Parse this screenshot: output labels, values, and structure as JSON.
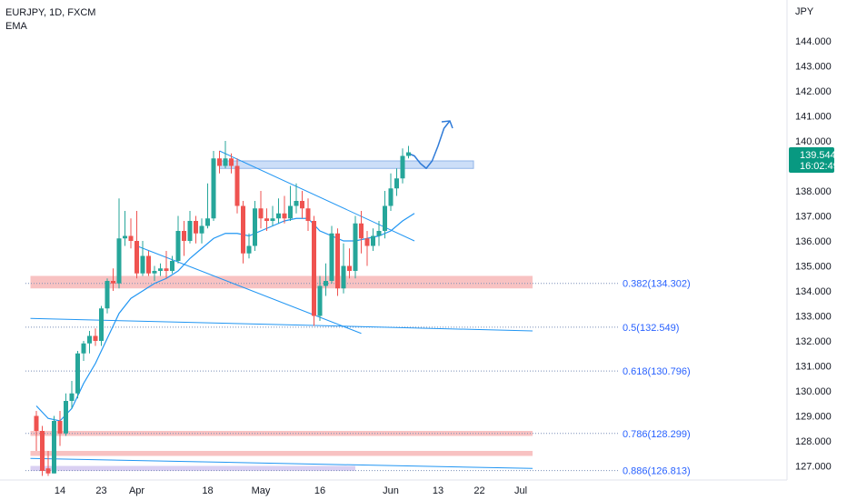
{
  "legend": {
    "symbol": "EURJPY, 1D, FXCM",
    "indicator": "EMA"
  },
  "currency": "JPY",
  "price_badge": {
    "price": "139.544",
    "countdown": "16:02:49",
    "color": "#089981"
  },
  "colors": {
    "up": "#26a69a",
    "down": "#ef5350",
    "ema": "#2196f3",
    "trend": "#2196f3",
    "zone_red": "#f7b7b7",
    "zone_blue": "#bbd3f5",
    "zone_purple": "#d4c8f0",
    "fib_text": "#2962ff"
  },
  "chart_data": {
    "type": "candlestick",
    "title": "EURJPY, 1D, FXCM",
    "ylabel": "JPY",
    "ylim": [
      126.5,
      145.7
    ],
    "y_ticks": [
      "144.000",
      "143.000",
      "142.000",
      "141.000",
      "140.000",
      "139.000",
      "138.000",
      "137.000",
      "136.000",
      "135.000",
      "134.000",
      "133.000",
      "132.000",
      "131.000",
      "130.000",
      "129.000",
      "128.000",
      "127.000"
    ],
    "x_ticks": [
      {
        "label": "14",
        "day": 0
      },
      {
        "label": "23",
        "day": 7
      },
      {
        "label": "Apr",
        "day": 13
      },
      {
        "label": "18",
        "day": 25
      },
      {
        "label": "May",
        "day": 34
      },
      {
        "label": "16",
        "day": 44
      },
      {
        "label": "Jun",
        "day": 56
      },
      {
        "label": "13",
        "day": 64
      },
      {
        "label": "22",
        "day": 71
      },
      {
        "label": "Jul",
        "day": 78
      }
    ],
    "candles": [
      [
        -4,
        129.0,
        128.4,
        129.2,
        127.6
      ],
      [
        -3,
        128.4,
        126.8,
        128.6,
        126.6
      ],
      [
        -2,
        126.9,
        126.7,
        127.6,
        126.6
      ],
      [
        -1,
        126.7,
        128.8,
        129.0,
        126.7
      ],
      [
        0,
        128.8,
        128.3,
        129.2,
        127.8
      ],
      [
        1,
        128.3,
        129.6,
        129.9,
        128.2
      ],
      [
        2,
        129.6,
        129.9,
        130.4,
        129.3
      ],
      [
        3,
        129.9,
        131.5,
        131.6,
        129.7
      ],
      [
        4,
        131.5,
        131.9,
        132.0,
        131.2
      ],
      [
        5,
        131.9,
        132.2,
        132.4,
        131.5
      ],
      [
        6,
        132.2,
        132.0,
        132.5,
        131.8
      ],
      [
        7,
        132.0,
        133.3,
        133.4,
        131.8
      ],
      [
        8,
        133.3,
        134.4,
        134.5,
        133.1
      ],
      [
        9,
        134.4,
        134.3,
        134.9,
        134.0
      ],
      [
        10,
        134.3,
        136.1,
        137.7,
        134.1
      ],
      [
        11,
        136.1,
        136.2,
        137.2,
        135.8
      ],
      [
        12,
        136.2,
        136.0,
        136.9,
        135.7
      ],
      [
        13,
        136.0,
        134.7,
        137.2,
        134.5
      ],
      [
        14,
        134.7,
        135.4,
        136.0,
        134.6
      ],
      [
        15,
        135.4,
        134.7,
        135.6,
        134.6
      ],
      [
        16,
        134.7,
        134.8,
        135.0,
        134.4
      ],
      [
        17,
        134.8,
        134.9,
        135.1,
        134.6
      ],
      [
        18,
        134.9,
        134.8,
        135.6,
        134.5
      ],
      [
        19,
        134.8,
        135.2,
        135.4,
        134.7
      ],
      [
        20,
        135.2,
        136.4,
        137.0,
        135.1
      ],
      [
        21,
        136.4,
        136.0,
        136.8,
        135.4
      ],
      [
        22,
        136.0,
        136.8,
        137.2,
        135.9
      ],
      [
        23,
        136.8,
        136.3,
        137.0,
        135.9
      ],
      [
        24,
        136.3,
        136.6,
        136.9,
        135.9
      ],
      [
        25,
        136.6,
        136.9,
        138.3,
        136.5
      ],
      [
        26,
        136.9,
        139.3,
        139.6,
        136.8
      ],
      [
        27,
        139.3,
        139.0,
        139.6,
        138.7
      ],
      [
        28,
        139.0,
        139.3,
        140.0,
        138.9
      ],
      [
        29,
        139.3,
        139.0,
        139.5,
        138.7
      ],
      [
        30,
        139.0,
        137.4,
        139.3,
        137.1
      ],
      [
        31,
        137.4,
        135.5,
        137.6,
        135.1
      ],
      [
        32,
        135.5,
        135.8,
        136.3,
        135.3
      ],
      [
        33,
        135.8,
        137.3,
        137.6,
        135.6
      ],
      [
        34,
        137.3,
        136.9,
        138.0,
        136.5
      ],
      [
        35,
        136.9,
        136.8,
        137.3,
        136.4
      ],
      [
        36,
        136.8,
        136.9,
        137.4,
        136.6
      ],
      [
        37,
        136.9,
        137.1,
        137.7,
        136.7
      ],
      [
        38,
        137.1,
        136.9,
        137.8,
        136.7
      ],
      [
        39,
        136.9,
        137.4,
        138.2,
        136.8
      ],
      [
        40,
        137.4,
        137.6,
        138.3,
        137.1
      ],
      [
        41,
        137.6,
        137.3,
        138.0,
        136.9
      ],
      [
        42,
        137.3,
        136.8,
        137.7,
        136.4
      ],
      [
        43,
        136.8,
        133.0,
        137.0,
        132.6
      ],
      [
        44,
        133.0,
        134.2,
        134.6,
        132.8
      ],
      [
        45,
        134.2,
        134.4,
        135.1,
        133.8
      ],
      [
        46,
        134.4,
        136.3,
        136.6,
        134.3
      ],
      [
        47,
        136.3,
        134.1,
        136.5,
        133.8
      ],
      [
        48,
        134.1,
        135.0,
        135.9,
        133.9
      ],
      [
        49,
        135.0,
        134.8,
        135.7,
        134.5
      ],
      [
        50,
        134.8,
        136.7,
        137.0,
        134.5
      ],
      [
        51,
        136.7,
        136.1,
        137.2,
        135.5
      ],
      [
        52,
        136.1,
        135.8,
        136.4,
        135.0
      ],
      [
        53,
        135.8,
        136.2,
        136.5,
        135.6
      ],
      [
        54,
        136.2,
        136.4,
        136.8,
        135.8
      ],
      [
        55,
        136.4,
        137.4,
        138.0,
        136.1
      ],
      [
        56,
        137.4,
        138.1,
        138.7,
        137.2
      ],
      [
        57,
        138.1,
        138.5,
        138.9,
        137.8
      ],
      [
        58,
        138.5,
        139.4,
        139.7,
        138.3
      ],
      [
        59,
        139.4,
        139.544,
        139.8,
        139.3
      ]
    ],
    "ema": [
      [
        -4,
        129.4
      ],
      [
        -2,
        128.9
      ],
      [
        0,
        128.8
      ],
      [
        2,
        129.3
      ],
      [
        4,
        130.3
      ],
      [
        6,
        131.1
      ],
      [
        8,
        132.1
      ],
      [
        10,
        133.1
      ],
      [
        12,
        133.7
      ],
      [
        14,
        134.0
      ],
      [
        16,
        134.3
      ],
      [
        18,
        134.5
      ],
      [
        20,
        134.8
      ],
      [
        22,
        135.3
      ],
      [
        24,
        135.7
      ],
      [
        26,
        136.1
      ],
      [
        28,
        136.3
      ],
      [
        30,
        136.3
      ],
      [
        32,
        136.2
      ],
      [
        34,
        136.4
      ],
      [
        36,
        136.6
      ],
      [
        38,
        136.8
      ],
      [
        40,
        136.9
      ],
      [
        42,
        136.9
      ],
      [
        44,
        136.4
      ],
      [
        46,
        136.2
      ],
      [
        48,
        136.0
      ],
      [
        50,
        136.0
      ],
      [
        52,
        136.1
      ],
      [
        54,
        136.2
      ],
      [
        56,
        136.4
      ],
      [
        58,
        136.8
      ],
      [
        60,
        137.1
      ]
    ],
    "trend_lines": [
      {
        "name": "upper-trend",
        "from": [
          27,
          139.6
        ],
        "to": [
          60,
          136.0
        ]
      },
      {
        "name": "lower-trend",
        "from": [
          13,
          135.8
        ],
        "to": [
          51,
          132.3
        ]
      },
      {
        "name": "long-support",
        "from": [
          -5,
          132.9
        ],
        "to": [
          80,
          132.4
        ]
      },
      {
        "name": "bottom-trend",
        "from": [
          -5,
          127.3
        ],
        "to": [
          80,
          126.9
        ]
      }
    ],
    "zones": [
      {
        "name": "resistance-zone",
        "color": "blue",
        "x0": 27,
        "x1": 70,
        "y0": 138.9,
        "y1": 139.2
      },
      {
        "name": "fib-382-zone",
        "color": "red",
        "x0": -5,
        "x1": 80,
        "y0": 134.1,
        "y1": 134.6
      },
      {
        "name": "fib-786-zone",
        "color": "red",
        "x0": -5,
        "x1": 80,
        "y0": 128.2,
        "y1": 128.4
      },
      {
        "name": "fib-886-zone",
        "color": "red",
        "x0": -5,
        "x1": 80,
        "y0": 127.4,
        "y1": 127.6
      },
      {
        "name": "purple-zone",
        "color": "purple",
        "x0": -5,
        "x1": 50,
        "y0": 126.8,
        "y1": 127.0
      }
    ],
    "fib_levels": [
      {
        "label": "0.382(134.302)",
        "price": 134.302
      },
      {
        "label": "0.5(132.549)",
        "price": 132.549
      },
      {
        "label": "0.618(130.796)",
        "price": 130.796
      },
      {
        "label": "0.786(128.299)",
        "price": 128.299
      },
      {
        "label": "0.886(126.813)",
        "price": 126.813
      }
    ],
    "projection": [
      [
        59,
        139.5
      ],
      [
        60,
        139.4
      ],
      [
        61,
        139.1
      ],
      [
        62,
        138.9
      ],
      [
        63,
        139.2
      ],
      [
        64,
        139.8
      ],
      [
        65,
        140.5
      ],
      [
        66,
        140.8
      ]
    ]
  }
}
